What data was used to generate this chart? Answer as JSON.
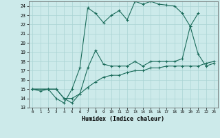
{
  "xlabel": "Humidex (Indice chaleur)",
  "xlim": [
    -0.5,
    23.5
  ],
  "ylim": [
    13,
    24.5
  ],
  "xticks": [
    0,
    1,
    2,
    3,
    4,
    5,
    6,
    7,
    8,
    9,
    10,
    11,
    12,
    13,
    14,
    15,
    16,
    17,
    18,
    19,
    20,
    21,
    22,
    23
  ],
  "yticks": [
    13,
    14,
    15,
    16,
    17,
    18,
    19,
    20,
    21,
    22,
    23,
    24
  ],
  "line_color": "#1a6b5a",
  "bg_color": "#cceaea",
  "grid_color": "#aad4d4",
  "line1_x": [
    0,
    1,
    2,
    3,
    4,
    5,
    6,
    7,
    8,
    9,
    10,
    11,
    12,
    13,
    14,
    15,
    16,
    17,
    18,
    19,
    20,
    21
  ],
  "line1_y": [
    15,
    14.8,
    15,
    14,
    13.5,
    15,
    17.3,
    23.8,
    23.2,
    22.2,
    23,
    23.5,
    22.5,
    24.5,
    24.2,
    24.5,
    24.2,
    24.1,
    24.0,
    23.2,
    21.8,
    23.2
  ],
  "line2_x": [
    0,
    2,
    3,
    4,
    5,
    6,
    7,
    8,
    9,
    10,
    11,
    12,
    13,
    14,
    15,
    16,
    17,
    18,
    19,
    20,
    21,
    22,
    23
  ],
  "line2_y": [
    15,
    15,
    15,
    14,
    13.5,
    14.5,
    17.3,
    19.2,
    17.7,
    17.5,
    17.5,
    17.5,
    18,
    17.5,
    18,
    18,
    18,
    18,
    18.3,
    21.8,
    18.8,
    17.5,
    17.8
  ],
  "line3_x": [
    0,
    2,
    3,
    4,
    5,
    6,
    7,
    8,
    9,
    10,
    11,
    12,
    13,
    14,
    15,
    16,
    17,
    18,
    19,
    20,
    21,
    22,
    23
  ],
  "line3_y": [
    15,
    15,
    15,
    14,
    14,
    14.5,
    15.2,
    15.8,
    16.3,
    16.5,
    16.5,
    16.8,
    17,
    17,
    17.3,
    17.3,
    17.5,
    17.5,
    17.5,
    17.5,
    17.5,
    17.8,
    18
  ]
}
